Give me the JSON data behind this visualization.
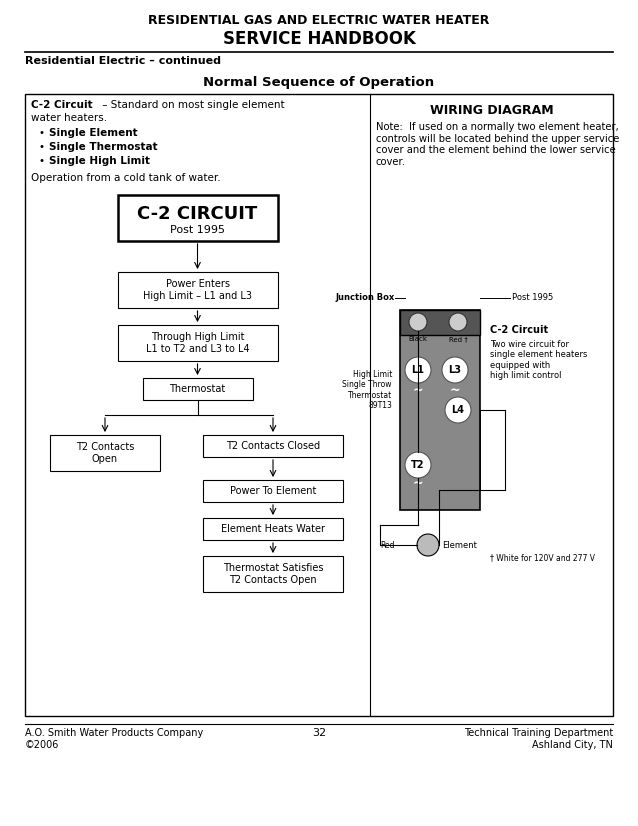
{
  "title_line1": "RESIDENTIAL GAS AND ELECTRIC WATER HEATER",
  "title_line2": "SERVICE HANDBOOK",
  "subtitle": "Residential Electric – continued",
  "section_title": "Normal Sequence of Operation",
  "left_bullets": [
    "Single Element",
    "Single Thermostat",
    "Single High Limit"
  ],
  "left_note": "Operation from a cold tank of water.",
  "right_panel_header": "WIRING DIAGRAM",
  "right_note": "Note:  If used on a normally two element heater,\ncontrols will be located behind the upper service\ncover and the element behind the lower service\ncover.",
  "circuit_title": "C-2 CIRCUIT",
  "circuit_subtitle": "Post 1995",
  "footer_left": "A.O. Smith Water Products Company\n©2006",
  "footer_center": "32",
  "footer_right": "Technical Training Department\nAshland City, TN",
  "bg_color": "#ffffff"
}
